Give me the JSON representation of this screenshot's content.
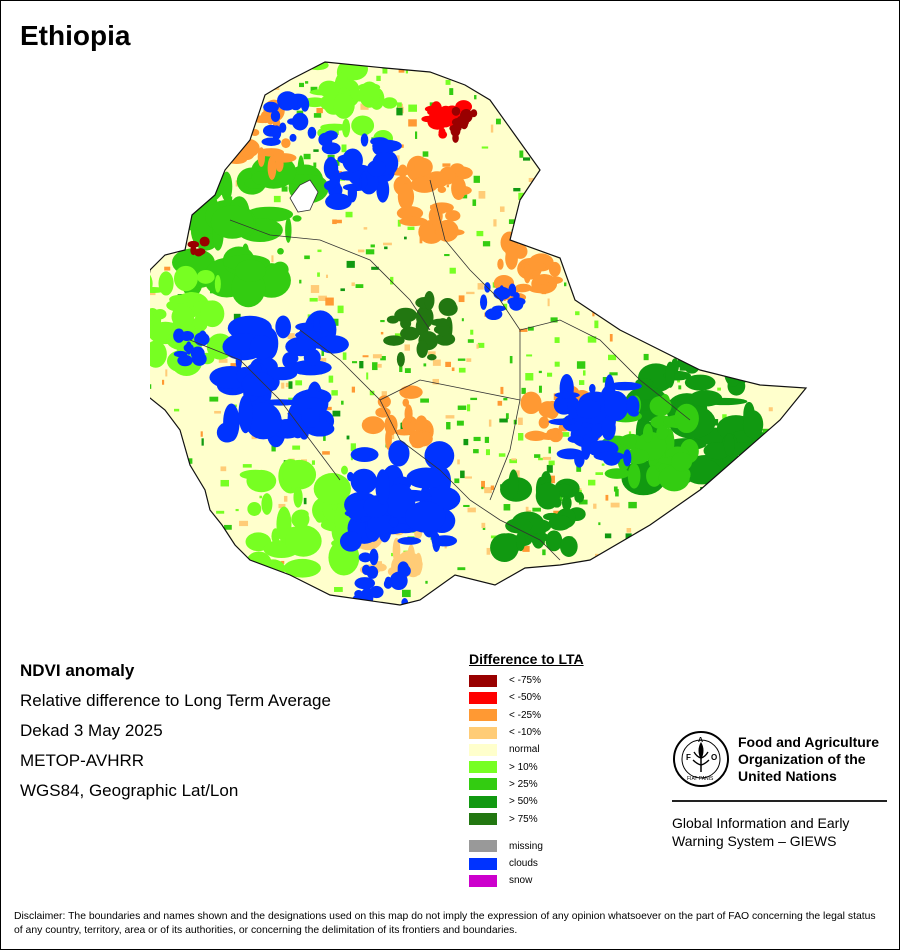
{
  "title": "Ethiopia",
  "info": {
    "lines": [
      "NDVI anomaly",
      "Relative difference to Long Term Average",
      "Dekad 3 May 2025",
      "METOP-AVHRR",
      "WGS84, Geographic Lat/Lon"
    ]
  },
  "legend": {
    "title": "Difference to LTA",
    "items": [
      {
        "label": "< -75%",
        "color": "#990000"
      },
      {
        "label": "< -50%",
        "color": "#ff0000"
      },
      {
        "label": "< -25%",
        "color": "#ff9933"
      },
      {
        "label": "< -10%",
        "color": "#ffcc77"
      },
      {
        "label": "normal",
        "color": "#ffffcc"
      },
      {
        "label": "> 10%",
        "color": "#77ff22"
      },
      {
        "label": "> 25%",
        "color": "#33cc11"
      },
      {
        "label": "> 50%",
        "color": "#119911"
      },
      {
        "label": "> 75%",
        "color": "#227711"
      }
    ],
    "extra": [
      {
        "label": "missing",
        "color": "#999999"
      },
      {
        "label": "clouds",
        "color": "#0033ff"
      },
      {
        "label": "snow",
        "color": "#cc00cc"
      }
    ]
  },
  "logo": {
    "org_lines": [
      "Food and Agriculture",
      "Organization of the",
      "United Nations"
    ],
    "program_lines": [
      "Global Information and Early",
      "Warning System – GIEWS"
    ],
    "logo_text": "FAO",
    "logo_motto": "FIAT PANIS"
  },
  "disclaimer": "Disclaimer: The boundaries and names shown and the designations used on this map do not imply the expression of any opinion whatsoever on the part of FAO concerning the legal status of any country, territory, area or of its authorities, or concerning the delimitation of its frontiers and boundaries."
}
